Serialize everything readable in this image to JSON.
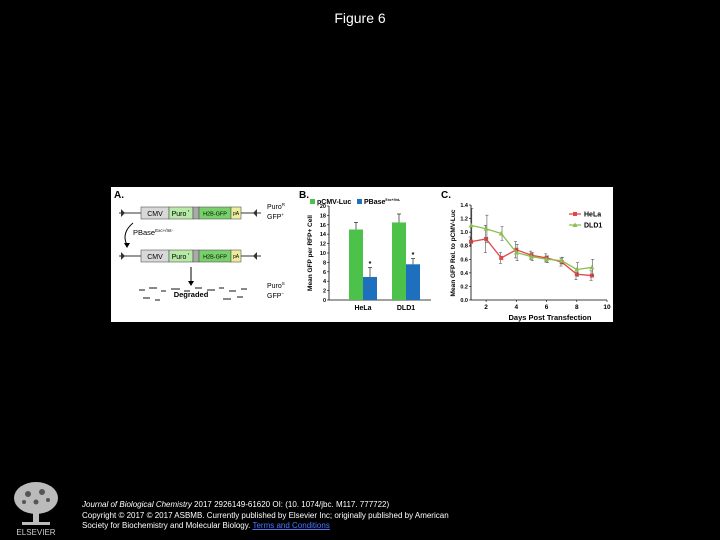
{
  "page": {
    "title": "Figure 6"
  },
  "panel_a": {
    "label": "A.",
    "top_construct": {
      "cmv": "CMV",
      "puro": "Puro",
      "puro_sup": "r",
      "h2b": "H2B-GFP",
      "pa": "pA"
    },
    "top_phenotype": {
      "line1": "Puro",
      "line1_sup": "R",
      "line2": "GFP",
      "line2_sup": "+"
    },
    "enzyme": {
      "text": "PBase",
      "sup": "Exc+/Int-"
    },
    "bottom_construct": {
      "cmv": "CMV",
      "puro": "Puro",
      "puro_sup": "r",
      "h2b": "H2B-GFP",
      "pa": "pA"
    },
    "degraded": "Degraded",
    "bottom_phenotype": {
      "line1": "Puro",
      "line1_sup": "S",
      "line2": "GFP",
      "line2_sup": "−"
    }
  },
  "panel_b": {
    "label": "B.",
    "legend": [
      {
        "name": "pCMV-Luc",
        "sup": "",
        "color": "#4cc24a"
      },
      {
        "name": "PBase",
        "sup": "Exc+/Int-",
        "color": "#1f6fbf"
      }
    ],
    "ylabel": "Mean GFP per RFP+ Cell",
    "categories": [
      "HeLa",
      "DLD1"
    ],
    "significance": "*"
  },
  "panel_c": {
    "label": "C.",
    "ylabel": "Mean GFP Rel. to pCMV-Luc",
    "xlabel": "Days Post Transfection",
    "legend": [
      {
        "name": "HeLa",
        "color": "#e04848"
      },
      {
        "name": "DLD1",
        "color": "#8bbf50"
      }
    ]
  },
  "chart_data": [
    {
      "type": "bar",
      "title": "",
      "xlabel": "",
      "ylabel": "Mean GFP per RFP+ Cell",
      "ylim": [
        0,
        20
      ],
      "yticks": [
        0,
        2,
        4,
        6,
        8,
        10,
        12,
        14,
        16,
        18,
        20
      ],
      "categories": [
        "HeLa",
        "DLD1"
      ],
      "series": [
        {
          "name": "pCMV-Luc",
          "values": [
            15.0,
            16.5
          ],
          "errors": [
            1.5,
            1.8
          ],
          "color": "#4cc24a"
        },
        {
          "name": "PBase Exc+/Int-",
          "values": [
            4.9,
            7.6
          ],
          "errors": [
            2.0,
            1.2
          ],
          "color": "#1f6fbf"
        }
      ],
      "annotations": [
        "*",
        "*"
      ],
      "legend_position": "top",
      "grid": false
    },
    {
      "type": "line",
      "title": "",
      "xlabel": "Days Post Transfection",
      "ylabel": "Mean GFP Rel. to pCMV-Luc",
      "xlim": [
        1,
        10
      ],
      "ylim": [
        0,
        1.4
      ],
      "xticks": [
        2,
        4,
        6,
        8,
        10
      ],
      "yticks": [
        0.0,
        0.2,
        0.4,
        0.6,
        0.8,
        1.0,
        1.2,
        1.4
      ],
      "x": [
        1,
        2,
        3,
        4,
        5,
        6,
        7,
        8,
        9
      ],
      "series": [
        {
          "name": "HeLa",
          "values": [
            0.86,
            0.9,
            0.62,
            0.74,
            0.66,
            0.62,
            0.56,
            0.38,
            0.36
          ],
          "errors": [
            0.07,
            0.2,
            0.08,
            0.12,
            0.06,
            0.06,
            0.06,
            0.08,
            0.07
          ],
          "color": "#e04848"
        },
        {
          "name": "DLD1",
          "values": [
            1.1,
            1.05,
            0.98,
            0.7,
            0.64,
            0.6,
            0.58,
            0.45,
            0.48
          ],
          "errors": [
            0.25,
            0.2,
            0.1,
            0.12,
            0.06,
            0.05,
            0.05,
            0.1,
            0.12
          ],
          "color": "#8bbf50"
        }
      ],
      "legend_position": "top-right",
      "grid": false
    }
  ],
  "footer": {
    "journal": "Journal of Biological Chemistry",
    "citation": " 2017 2926149-61620 OI: (10. 1074/jbc. M117. 777722)",
    "copyright": "Copyright © 2017 © 2017 ASBMB. Currently published by Elsevier Inc; originally published by American",
    "society": "Society for Biochemistry and Molecular Biology.",
    "terms": "Terms and Conditions"
  },
  "logo": {
    "icon": "elsevier-tree-icon",
    "text": "ELSEVIER"
  }
}
